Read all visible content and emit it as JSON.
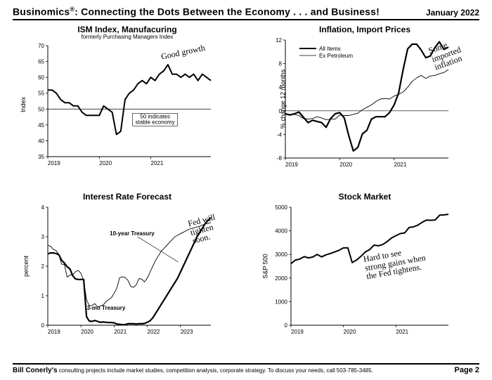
{
  "header": {
    "brand": "Businomics",
    "tagline": ": Connecting the Dots Between the Economy . . . and Business!",
    "date": "January 2022"
  },
  "footer": {
    "author": "Bill Conerly's",
    "tagline": " consulting projects include market studies, competition analysis, corporate strategy.  To discuss your needs, call 503-785-3485.",
    "page": "Page 2"
  },
  "charts": {
    "ism": {
      "title": "ISM Index, Manufacuring",
      "subtitle": "formerly Purchasing Managers Index",
      "ylabel": "Index",
      "ylim": [
        35,
        70
      ],
      "ytick_step": 5,
      "xlabels": [
        "2019",
        "2020",
        "2021"
      ],
      "ref_line": 50,
      "ref_text_1": "50 indicates",
      "ref_text_2": "stable economy",
      "series_color": "#000000",
      "line_width": 2,
      "data": [
        56,
        56,
        55,
        53,
        52,
        52,
        51,
        51,
        49,
        48,
        48,
        48,
        48,
        51,
        50,
        49,
        42,
        43,
        53,
        55,
        56,
        58,
        59,
        58,
        60,
        59,
        61,
        62,
        64,
        61,
        61,
        60,
        61,
        60,
        61,
        59,
        61,
        60,
        59
      ],
      "annotation": "Good growth",
      "annotation_rotate": -12
    },
    "inflation": {
      "title": "Inflation, Import Prices",
      "ylabel": "% change 12 months",
      "ylim": [
        -8,
        12
      ],
      "ytick_step": 4,
      "xlabels": [
        "2019",
        "2020",
        "2021"
      ],
      "ref_line": 0,
      "legend_all": "All Items",
      "legend_ex": "Ex Petroleum",
      "series_all": [
        -0.5,
        -0.7,
        -0.5,
        -0.2,
        -1.1,
        -2.0,
        -1.6,
        -1.8,
        -2.0,
        -2.8,
        -1.3,
        -0.5,
        -0.3,
        -1.2,
        -4.2,
        -6.8,
        -6.2,
        -3.9,
        -3.3,
        -1.4,
        -1.0,
        -1.0,
        -1.0,
        -0.3,
        1.0,
        3.0,
        7.0,
        10.5,
        11.3,
        11.3,
        10.3,
        9.0,
        9.3,
        10.7,
        11.7,
        10.4,
        10.8
      ],
      "series_ex": [
        -0.5,
        -0.6,
        -0.6,
        -0.8,
        -1.3,
        -1.4,
        -1.3,
        -1.0,
        -1.2,
        -1.5,
        -1.4,
        -1.4,
        -0.7,
        -0.8,
        -0.8,
        -0.6,
        -0.4,
        0.2,
        0.6,
        1.0,
        1.6,
        2.0,
        2.1,
        2.0,
        2.5,
        2.8,
        3.2,
        4.0,
        5.0,
        5.6,
        6.0,
        5.5,
        5.9,
        6.0,
        6.3,
        6.5,
        7.0
      ],
      "line_width_all": 2.2,
      "line_width_ex": 0.9,
      "color": "#000000",
      "annotation": "Some\nimported\ninflation",
      "annotation_rotate": -20
    },
    "rates": {
      "title": "Interest Rate Forecast",
      "ylabel": "percent",
      "ylim": [
        0,
        4
      ],
      "ytick_step": 1,
      "xlabels": [
        "2019",
        "2020",
        "2021",
        "2022",
        "2023"
      ],
      "label_10yr": "10-year Treasury",
      "label_3mo": "3-mo Treasury",
      "color": "#000000",
      "line_width_10yr": 0.9,
      "line_width_3mo": 2.2,
      "series_10yr": [
        2.71,
        2.68,
        2.57,
        2.53,
        2.4,
        2.07,
        2.06,
        1.63,
        1.7,
        1.71,
        1.81,
        1.86,
        1.76,
        1.5,
        0.87,
        0.66,
        0.67,
        0.73,
        0.62,
        0.65,
        0.68,
        0.79,
        0.87,
        0.93,
        1.08,
        1.26,
        1.61,
        1.64,
        1.62,
        1.52,
        1.32,
        1.28,
        1.37,
        1.58,
        1.56,
        1.47,
        1.6,
        1.8,
        2.0,
        2.2,
        2.35,
        2.5,
        2.6,
        2.7,
        2.8,
        2.9,
        3.0,
        3.05,
        3.1,
        3.15,
        3.2,
        3.25,
        3.28,
        3.3,
        3.33,
        3.36,
        3.4,
        3.43,
        3.45,
        3.48
      ],
      "series_3mo": [
        2.42,
        2.45,
        2.45,
        2.43,
        2.39,
        2.2,
        2.11,
        1.98,
        1.91,
        1.68,
        1.57,
        1.55,
        1.55,
        1.55,
        0.29,
        0.14,
        0.13,
        0.16,
        0.13,
        0.1,
        0.11,
        0.1,
        0.09,
        0.09,
        0.08,
        0.04,
        0.03,
        0.02,
        0.02,
        0.05,
        0.05,
        0.05,
        0.04,
        0.05,
        0.05,
        0.06,
        0.1,
        0.15,
        0.25,
        0.4,
        0.55,
        0.7,
        0.85,
        1.0,
        1.15,
        1.3,
        1.45,
        1.6,
        1.8,
        2.0,
        2.2,
        2.4,
        2.6,
        2.8,
        3.0,
        3.15,
        3.3,
        3.45,
        3.55,
        3.65
      ],
      "annotation": "Fed will\ntighten\nsoon.",
      "annotation_rotate": -15
    },
    "stocks": {
      "title": "Stock Market",
      "ylabel": "S&P 500",
      "ylim": [
        0,
        5000
      ],
      "ytick_step": 1000,
      "xlabels": [
        "2019",
        "2020",
        "2021"
      ],
      "color": "#000000",
      "line_width": 2,
      "data": [
        2607,
        2755,
        2804,
        2904,
        2855,
        2890,
        2996,
        2897,
        2982,
        3038,
        3105,
        3177,
        3278,
        3277,
        2652,
        2762,
        2920,
        3105,
        3208,
        3392,
        3366,
        3419,
        3549,
        3695,
        3794,
        3883,
        3911,
        4141,
        4168,
        4238,
        4364,
        4455,
        4446,
        4460,
        4668,
        4675,
        4700
      ],
      "annotation": "Hard to see\nstrong gains when\nthe Fed tightens.",
      "annotation_rotate": -10
    }
  },
  "style": {
    "bg": "#ffffff",
    "axis_color": "#000000",
    "tick_fontsize": 8,
    "title_fontsize": 12
  }
}
